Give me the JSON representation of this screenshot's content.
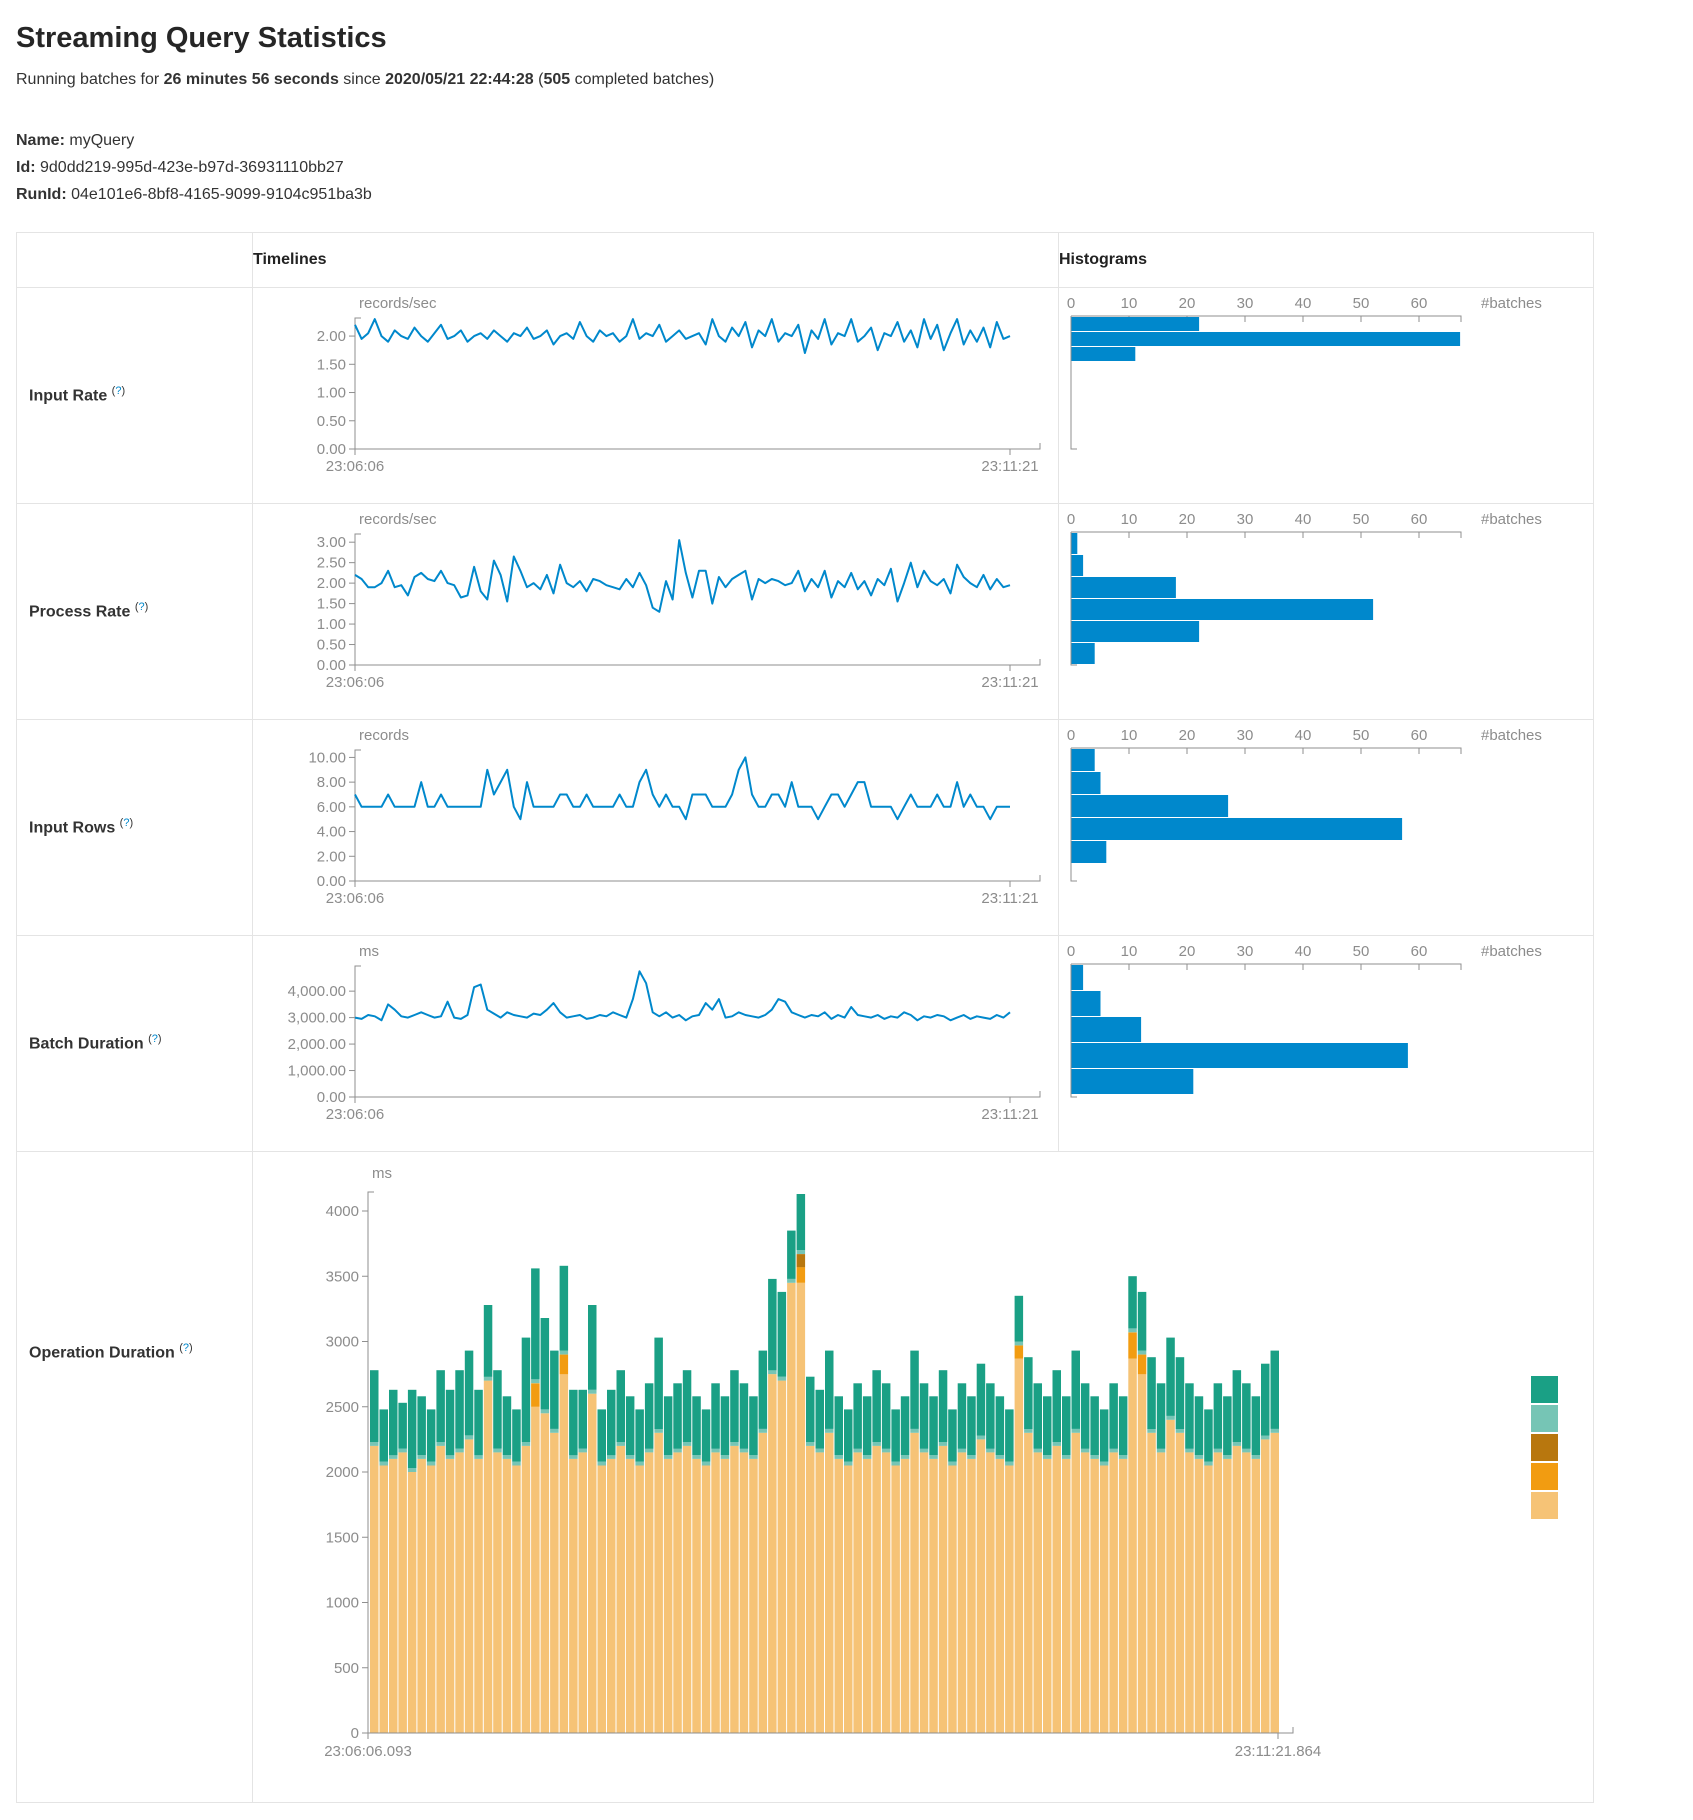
{
  "page": {
    "title": "Streaming Query Statistics",
    "running_prefix": "Running batches for ",
    "duration": "26 minutes 56 seconds",
    "since_text": " since ",
    "start_time": "2020/05/21 22:44:28",
    "paren_open": " (",
    "completed_batches": "505",
    "completed_suffix": " completed batches)",
    "name_label": "Name:",
    "name_value": "myQuery",
    "id_label": "Id:",
    "id_value": "9d0dd219-995d-423e-b97d-36931110bb27",
    "runid_label": "RunId:",
    "runid_value": "04e101e6-8bf8-4165-9099-9104c951ba3b"
  },
  "table": {
    "col_timelines": "Timelines",
    "col_histograms": "Histograms",
    "help_open": "(",
    "help_q": "?",
    "help_close": ")",
    "rows": [
      {
        "label": "Input Rate"
      },
      {
        "label": "Process Rate"
      },
      {
        "label": "Input Rows"
      },
      {
        "label": "Batch Duration"
      },
      {
        "label": "Operation Duration"
      }
    ]
  },
  "colors": {
    "accent_blue": "#0088cc",
    "axis_gray": "#8f8f8f",
    "label_gray": "#8c8c8c"
  },
  "chart_data": [
    {
      "row": "Input Rate",
      "type": "line",
      "unit": "records/sec",
      "x_start": "23:06:06",
      "x_end": "23:11:21",
      "ytick_values": [
        0,
        0.5,
        1,
        1.5,
        2
      ],
      "ytick_labels": [
        "0.00",
        "0.50",
        "1.00",
        "1.50",
        "2.00"
      ],
      "ymax_render": 2.32,
      "values": [
        2.2,
        1.95,
        2.05,
        2.3,
        2.0,
        1.9,
        2.1,
        2.0,
        1.95,
        2.15,
        2.0,
        1.9,
        2.05,
        2.2,
        1.95,
        2.0,
        2.1,
        1.9,
        2.0,
        2.05,
        1.95,
        2.1,
        2.0,
        1.9,
        2.05,
        2.0,
        2.15,
        1.95,
        2.0,
        2.1,
        1.85,
        2.0,
        2.05,
        1.95,
        2.25,
        2.0,
        1.9,
        2.1,
        2.0,
        2.05,
        1.9,
        2.0,
        2.3,
        1.95,
        2.05,
        2.0,
        2.2,
        1.9,
        2.0,
        2.1,
        1.95,
        2.0,
        2.05,
        1.85,
        2.3,
        2.0,
        1.9,
        2.15,
        2.0,
        2.25,
        1.8,
        2.1,
        2.0,
        2.3,
        1.9,
        2.05,
        2.0,
        2.2,
        1.7,
        2.1,
        1.95,
        2.3,
        1.85,
        2.05,
        2.0,
        2.3,
        1.9,
        2.0,
        2.15,
        1.75,
        2.05,
        2.0,
        2.25,
        1.9,
        2.1,
        1.8,
        2.3,
        1.95,
        2.2,
        1.75,
        2.05,
        2.3,
        1.85,
        2.1,
        1.9,
        2.15,
        1.8,
        2.25,
        1.95,
        2.0
      ],
      "histogram": {
        "xticks": [
          0,
          10,
          20,
          30,
          40,
          50,
          60
        ],
        "xlabel": "#batches",
        "bars": [
          22,
          67,
          11
        ],
        "bar_thickness": 14
      }
    },
    {
      "row": "Process Rate",
      "type": "line",
      "unit": "records/sec",
      "x_start": "23:06:06",
      "x_end": "23:11:21",
      "ytick_values": [
        0,
        0.5,
        1,
        1.5,
        2,
        2.5,
        3
      ],
      "ytick_labels": [
        "0.00",
        "0.50",
        "1.00",
        "1.50",
        "2.00",
        "2.50",
        "3.00"
      ],
      "ymax_render": 3.2,
      "values": [
        2.2,
        2.1,
        1.9,
        1.9,
        2.0,
        2.3,
        1.9,
        1.95,
        1.7,
        2.15,
        2.25,
        2.1,
        2.05,
        2.3,
        2.0,
        1.95,
        1.65,
        1.7,
        2.4,
        1.8,
        1.6,
        2.55,
        2.2,
        1.55,
        2.65,
        2.3,
        1.9,
        2.0,
        1.85,
        2.2,
        1.75,
        2.45,
        2.0,
        1.9,
        2.05,
        1.8,
        2.1,
        2.05,
        1.95,
        1.9,
        1.85,
        2.1,
        1.9,
        2.25,
        1.95,
        1.4,
        1.3,
        2.05,
        1.6,
        3.05,
        2.25,
        1.65,
        2.3,
        2.3,
        1.5,
        2.15,
        1.9,
        2.1,
        2.2,
        2.3,
        1.6,
        2.1,
        2.0,
        2.1,
        2.05,
        1.95,
        2.0,
        2.3,
        1.8,
        2.1,
        1.9,
        2.3,
        1.65,
        2.05,
        1.9,
        2.25,
        1.85,
        2.05,
        1.7,
        2.1,
        1.95,
        2.35,
        1.55,
        2.0,
        2.5,
        1.9,
        2.3,
        2.05,
        1.95,
        2.1,
        1.75,
        2.45,
        2.15,
        2.0,
        1.9,
        2.2,
        1.85,
        2.1,
        1.9,
        1.95
      ],
      "histogram": {
        "xticks": [
          0,
          10,
          20,
          30,
          40,
          50,
          60
        ],
        "xlabel": "#batches",
        "bars": [
          1,
          2,
          18,
          52,
          22,
          4
        ],
        "bar_thickness": 21
      }
    },
    {
      "row": "Input Rows",
      "type": "line",
      "unit": "records",
      "x_start": "23:06:06",
      "x_end": "23:11:21",
      "ytick_values": [
        0,
        2,
        4,
        6,
        8,
        10
      ],
      "ytick_labels": [
        "0.00",
        "2.00",
        "4.00",
        "6.00",
        "8.00",
        "10.00"
      ],
      "ymax_render": 10.6,
      "values": [
        7,
        6,
        6,
        6,
        6,
        7,
        6,
        6,
        6,
        6,
        8,
        6,
        6,
        7,
        6,
        6,
        6,
        6,
        6,
        6,
        9,
        7,
        8,
        9,
        6,
        5,
        8,
        6,
        6,
        6,
        6,
        7,
        7,
        6,
        6,
        7,
        6,
        6,
        6,
        6,
        7,
        6,
        6,
        8,
        9,
        7,
        6,
        7,
        6,
        6,
        5,
        7,
        7,
        7,
        6,
        6,
        6,
        7,
        9,
        10,
        7,
        6,
        6,
        7,
        7,
        6,
        8,
        6,
        6,
        6,
        5,
        6,
        7,
        7,
        6,
        7,
        8,
        8,
        6,
        6,
        6,
        6,
        5,
        6,
        7,
        6,
        6,
        6,
        7,
        6,
        6,
        8,
        6,
        7,
        6,
        6,
        5,
        6,
        6,
        6
      ],
      "histogram": {
        "xticks": [
          0,
          10,
          20,
          30,
          40,
          50,
          60
        ],
        "xlabel": "#batches",
        "bars": [
          4,
          5,
          27,
          57,
          6
        ],
        "bar_thickness": 22
      }
    },
    {
      "row": "Batch Duration",
      "type": "line",
      "unit": "ms",
      "x_start": "23:06:06",
      "x_end": "23:11:21",
      "ytick_values": [
        0,
        1000,
        2000,
        3000,
        4000
      ],
      "ytick_labels": [
        "0.00",
        "1,000.00",
        "2,000.00",
        "3,000.00",
        "4,000.00"
      ],
      "ymax_render": 4950,
      "values": [
        3000,
        2950,
        3100,
        3050,
        2900,
        3500,
        3300,
        3050,
        3000,
        3100,
        3200,
        3100,
        3000,
        3050,
        3600,
        3000,
        2950,
        3100,
        4150,
        4250,
        3300,
        3150,
        3000,
        3200,
        3100,
        3050,
        3000,
        3150,
        3100,
        3300,
        3550,
        3200,
        3000,
        3050,
        3100,
        2950,
        3000,
        3100,
        3050,
        3200,
        3100,
        3000,
        3700,
        4750,
        4300,
        3200,
        3050,
        3200,
        3000,
        3100,
        2900,
        3050,
        3100,
        3550,
        3300,
        3700,
        3000,
        3050,
        3200,
        3100,
        3050,
        3000,
        3100,
        3300,
        3700,
        3600,
        3200,
        3100,
        3000,
        3100,
        3050,
        3200,
        2950,
        3100,
        3000,
        3400,
        3100,
        3050,
        3000,
        3100,
        2950,
        3050,
        3000,
        3200,
        3100,
        2900,
        3050,
        3000,
        3100,
        3050,
        2900,
        3000,
        3100,
        2950,
        3050,
        3000,
        2950,
        3100,
        3000,
        3200
      ],
      "histogram": {
        "xticks": [
          0,
          10,
          20,
          30,
          40,
          50,
          60
        ],
        "xlabel": "#batches",
        "bars": [
          2,
          5,
          12,
          58,
          21
        ],
        "bar_thickness": 25
      }
    },
    {
      "row": "Operation Duration",
      "type": "stacked-bar",
      "unit": "ms",
      "x_start": "23:06:06.093",
      "x_end": "23:11:21.864",
      "ytick_values": [
        0,
        500,
        1000,
        1500,
        2000,
        2500,
        3000,
        3500,
        4000
      ],
      "ytick_labels": [
        "0",
        "500",
        "1000",
        "1500",
        "2000",
        "2500",
        "3000",
        "3500",
        "4000"
      ],
      "legend_colors": [
        "#1aa085",
        "#76c5b5",
        "#b8770e",
        "#f29c11",
        "#f6c376"
      ],
      "series": [
        {
          "name": "s1",
          "color": "#f6c376",
          "values": [
            2200,
            2050,
            2100,
            2150,
            2000,
            2100,
            2050,
            2200,
            2100,
            2150,
            2250,
            2100,
            2700,
            2150,
            2100,
            2050,
            2200,
            2500,
            2450,
            2300,
            2750,
            2100,
            2150,
            2600,
            2050,
            2100,
            2200,
            2100,
            2050,
            2150,
            2300,
            2100,
            2150,
            2200,
            2100,
            2050,
            2150,
            2100,
            2200,
            2150,
            2100,
            2300,
            2750,
            2700,
            3450,
            3450,
            2200,
            2150,
            2300,
            2100,
            2050,
            2150,
            2100,
            2200,
            2150,
            2050,
            2100,
            2300,
            2150,
            2100,
            2200,
            2050,
            2150,
            2100,
            2250,
            2150,
            2100,
            2050,
            2870,
            2300,
            2150,
            2100,
            2200,
            2100,
            2300,
            2150,
            2100,
            2050,
            2150,
            2100,
            2870,
            2750,
            2300,
            2150,
            2400,
            2300,
            2150,
            2100,
            2050,
            2150,
            2100,
            2200,
            2150,
            2100,
            2250,
            2300
          ]
        },
        {
          "name": "s2",
          "color": "#f29c11",
          "sparse": {
            "17": 180,
            "20": 150,
            "45": 120,
            "68": 100,
            "80": 200,
            "81": 150
          }
        },
        {
          "name": "s3",
          "color": "#b8770e",
          "sparse": {
            "45": 100
          }
        },
        {
          "name": "s4",
          "color": "#76c5b5",
          "constant": 30
        },
        {
          "name": "s5",
          "color": "#1aa085",
          "values": [
            550,
            400,
            500,
            350,
            600,
            450,
            400,
            550,
            500,
            600,
            650,
            500,
            550,
            600,
            450,
            400,
            800,
            850,
            700,
            600,
            650,
            500,
            450,
            650,
            400,
            500,
            550,
            450,
            400,
            500,
            700,
            450,
            500,
            550,
            450,
            400,
            500,
            450,
            550,
            500,
            450,
            600,
            700,
            650,
            370,
            430,
            500,
            450,
            600,
            450,
            400,
            500,
            450,
            550,
            500,
            400,
            450,
            600,
            500,
            450,
            550,
            400,
            500,
            450,
            550,
            500,
            450,
            400,
            350,
            550,
            500,
            450,
            550,
            450,
            600,
            500,
            450,
            400,
            500,
            450,
            400,
            450,
            550,
            500,
            600,
            550,
            500,
            450,
            400,
            500,
            450,
            550,
            500,
            450,
            550,
            600
          ]
        }
      ]
    }
  ]
}
